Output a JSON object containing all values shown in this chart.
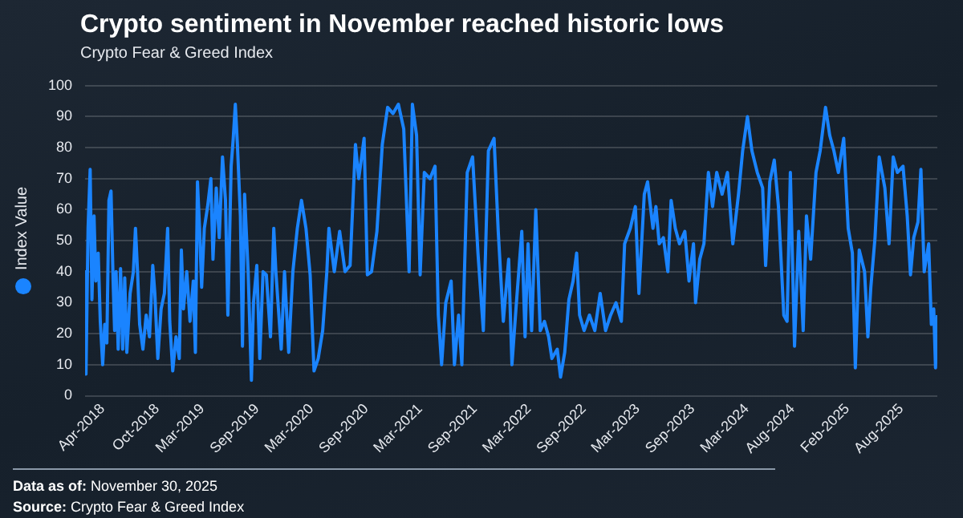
{
  "chart_data": {
    "type": "line",
    "title": "Crypto sentiment in November reached historic lows",
    "subtitle": "Crypto Fear & Greed Index",
    "x": [
      "2018-02-01",
      "2018-02-04",
      "2018-02-11",
      "2018-02-18",
      "2018-02-24",
      "2018-03-03",
      "2018-03-09",
      "2018-03-17",
      "2018-03-24",
      "2018-04-01",
      "2018-04-08",
      "2018-04-15",
      "2018-04-22",
      "2018-04-29",
      "2018-05-06",
      "2018-05-11",
      "2018-05-16",
      "2018-05-23",
      "2018-05-31",
      "2018-06-07",
      "2018-06-14",
      "2018-06-21",
      "2018-07-02",
      "2018-07-13",
      "2018-07-20",
      "2018-07-27",
      "2018-08-03",
      "2018-08-14",
      "2018-08-25",
      "2018-09-05",
      "2018-09-16",
      "2018-09-23",
      "2018-10-03",
      "2018-10-14",
      "2018-10-25",
      "2018-11-05",
      "2018-11-12",
      "2018-11-22",
      "2018-12-03",
      "2018-12-14",
      "2018-12-21",
      "2018-12-28",
      "2019-01-08",
      "2019-01-19",
      "2019-01-30",
      "2019-02-06",
      "2019-02-13",
      "2019-02-20",
      "2019-02-27",
      "2019-03-08",
      "2019-03-19",
      "2019-03-30",
      "2019-04-06",
      "2019-04-17",
      "2019-04-27",
      "2019-05-08",
      "2019-05-18",
      "2019-05-26",
      "2019-06-06",
      "2019-06-13",
      "2019-06-20",
      "2019-06-27",
      "2019-07-07",
      "2019-07-14",
      "2019-07-21",
      "2019-08-02",
      "2019-08-13",
      "2019-08-20",
      "2019-08-31",
      "2019-09-10",
      "2019-09-21",
      "2019-10-02",
      "2019-10-16",
      "2019-10-27",
      "2019-11-03",
      "2019-11-21",
      "2019-12-02",
      "2019-12-16",
      "2019-12-30",
      "2020-01-14",
      "2020-01-28",
      "2020-02-12",
      "2020-02-26",
      "2020-03-10",
      "2020-03-24",
      "2020-04-08",
      "2020-04-22",
      "2020-04-29",
      "2020-05-17",
      "2020-06-04",
      "2020-06-22",
      "2020-07-09",
      "2020-07-27",
      "2020-08-07",
      "2020-08-25",
      "2020-09-05",
      "2020-09-19",
      "2020-10-07",
      "2020-10-25",
      "2020-11-12",
      "2020-11-30",
      "2020-12-18",
      "2021-01-05",
      "2021-01-23",
      "2021-02-03",
      "2021-02-17",
      "2021-03-01",
      "2021-03-15",
      "2021-04-03",
      "2021-04-20",
      "2021-05-01",
      "2021-05-12",
      "2021-05-26",
      "2021-06-13",
      "2021-06-24",
      "2021-07-08",
      "2021-07-19",
      "2021-08-06",
      "2021-08-24",
      "2021-09-11",
      "2021-09-29",
      "2021-10-16",
      "2021-11-04",
      "2021-11-18",
      "2021-12-05",
      "2021-12-23",
      "2022-01-03",
      "2022-01-18",
      "2022-02-05",
      "2022-02-16",
      "2022-02-26",
      "2022-03-10",
      "2022-03-24",
      "2022-04-08",
      "2022-04-22",
      "2022-05-06",
      "2022-05-17",
      "2022-06-04",
      "2022-06-15",
      "2022-06-29",
      "2022-07-13",
      "2022-07-27",
      "2022-08-08",
      "2022-08-18",
      "2022-09-02",
      "2022-09-20",
      "2022-10-08",
      "2022-10-26",
      "2022-11-13",
      "2022-11-30",
      "2022-12-18",
      "2023-01-05",
      "2023-01-16",
      "2023-02-04",
      "2023-02-21",
      "2023-03-05",
      "2023-03-23",
      "2023-04-03",
      "2023-04-21",
      "2023-05-01",
      "2023-05-12",
      "2023-05-26",
      "2023-06-10",
      "2023-06-21",
      "2023-07-05",
      "2023-07-19",
      "2023-08-06",
      "2023-08-20",
      "2023-09-04",
      "2023-09-11",
      "2023-09-25",
      "2023-10-09",
      "2023-10-24",
      "2023-11-07",
      "2023-11-21",
      "2023-12-09",
      "2023-12-27",
      "2024-01-14",
      "2024-02-02",
      "2024-02-16",
      "2024-03-03",
      "2024-03-18",
      "2024-04-05",
      "2024-04-23",
      "2024-05-03",
      "2024-05-17",
      "2024-06-01",
      "2024-06-15",
      "2024-07-03",
      "2024-07-14",
      "2024-07-25",
      "2024-08-08",
      "2024-08-22",
      "2024-09-06",
      "2024-09-17",
      "2024-10-01",
      "2024-10-19",
      "2024-11-02",
      "2024-11-20",
      "2024-12-04",
      "2024-12-18",
      "2025-01-02",
      "2025-01-20",
      "2025-02-04",
      "2025-02-18",
      "2025-02-28",
      "2025-03-13",
      "2025-03-31",
      "2025-04-11",
      "2025-04-21",
      "2025-05-05",
      "2025-05-19",
      "2025-06-07",
      "2025-06-21",
      "2025-07-05",
      "2025-07-19",
      "2025-08-07",
      "2025-08-21",
      "2025-09-01",
      "2025-09-12",
      "2025-09-26",
      "2025-10-06",
      "2025-10-17",
      "2025-11-01",
      "2025-11-10",
      "2025-11-18",
      "2025-11-24",
      "2025-11-30"
    ],
    "series": [
      {
        "name": "Index Value",
        "color": "#1a84ff",
        "values": [
          40,
          7,
          54,
          73,
          31,
          58,
          37,
          46,
          24,
          10,
          23,
          17,
          63,
          66,
          37,
          21,
          40,
          15,
          41,
          15,
          38,
          14,
          33,
          40,
          54,
          40,
          23,
          15,
          26,
          19,
          42,
          33,
          12,
          28,
          33,
          54,
          24,
          8,
          19,
          12,
          47,
          28,
          40,
          24,
          37,
          14,
          69,
          54,
          35,
          54,
          61,
          70,
          44,
          67,
          51,
          77,
          63,
          26,
          74,
          83,
          94,
          81,
          58,
          16,
          65,
          40,
          5,
          30,
          42,
          12,
          40,
          39,
          19,
          54,
          40,
          15,
          40,
          14,
          40,
          54,
          63,
          54,
          39,
          8,
          12,
          21,
          40,
          54,
          40,
          53,
          40,
          42,
          81,
          70,
          83,
          39,
          40,
          53,
          81,
          93,
          91,
          94,
          86,
          40,
          94,
          84,
          39,
          72,
          70,
          74,
          26,
          10,
          30,
          37,
          10,
          26,
          10,
          72,
          77,
          46,
          21,
          79,
          83,
          53,
          24,
          44,
          10,
          30,
          53,
          19,
          49,
          21,
          60,
          21,
          24,
          19,
          12,
          15,
          6,
          14,
          31,
          37,
          46,
          26,
          21,
          26,
          21,
          33,
          21,
          26,
          30,
          24,
          49,
          54,
          61,
          33,
          65,
          69,
          54,
          61,
          49,
          51,
          40,
          63,
          54,
          49,
          53,
          37,
          49,
          30,
          44,
          49,
          72,
          61,
          72,
          65,
          72,
          49,
          65,
          79,
          90,
          79,
          72,
          67,
          42,
          69,
          76,
          61,
          26,
          24,
          72,
          16,
          53,
          21,
          58,
          44,
          72,
          79,
          93,
          84,
          79,
          72,
          83,
          54,
          46,
          9,
          47,
          40,
          19,
          35,
          51,
          77,
          67,
          49,
          77,
          72,
          74,
          58,
          39,
          51,
          56,
          73,
          40,
          49,
          23,
          28,
          9,
          26
        ]
      }
    ],
    "xlim": [
      "2018-02-01",
      "2025-11-30"
    ],
    "xticks": [
      {
        "value": "2018-04-01",
        "label": "Apr-2018"
      },
      {
        "value": "2018-10-01",
        "label": "Oct-2018"
      },
      {
        "value": "2019-03-01",
        "label": "Mar-2019"
      },
      {
        "value": "2019-09-01",
        "label": "Sep-2019"
      },
      {
        "value": "2020-03-01",
        "label": "Mar-2020"
      },
      {
        "value": "2020-09-01",
        "label": "Sep-2020"
      },
      {
        "value": "2021-03-01",
        "label": "Mar-2021"
      },
      {
        "value": "2021-09-01",
        "label": "Sep-2021"
      },
      {
        "value": "2022-03-01",
        "label": "Mar-2022"
      },
      {
        "value": "2022-09-01",
        "label": "Sep-2022"
      },
      {
        "value": "2023-03-01",
        "label": "Mar-2023"
      },
      {
        "value": "2023-09-01",
        "label": "Sep-2023"
      },
      {
        "value": "2024-03-01",
        "label": "Mar-2024"
      },
      {
        "value": "2024-08-01",
        "label": "Aug-2024"
      },
      {
        "value": "2025-02-01",
        "label": "Feb-2025"
      },
      {
        "value": "2025-08-01",
        "label": "Aug-2025"
      }
    ],
    "ylim": [
      0,
      100
    ],
    "yticks": [
      0,
      10,
      20,
      30,
      40,
      50,
      60,
      70,
      80,
      90,
      100
    ],
    "grid": "y",
    "legend": "left",
    "marker": "none",
    "line_style": "solid",
    "annotations": [
      "Data as of: November 30, 2025",
      "Source: Crypto Fear & Greed Index"
    ]
  }
}
